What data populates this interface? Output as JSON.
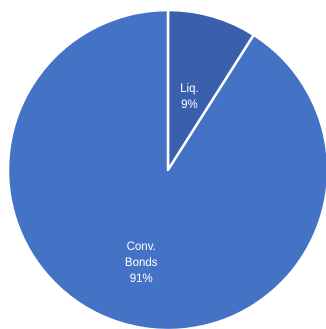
{
  "chart_data": {
    "type": "pie",
    "start_angle_deg": 0,
    "direction": "clockwise",
    "slices": [
      {
        "label_lines": [
          "Liq.",
          "9%"
        ],
        "value": 9,
        "color": "#3a5fad"
      },
      {
        "label_lines": [
          "Conv.",
          "Bonds",
          "91%"
        ],
        "value": 91,
        "color": "#4472c4"
      }
    ],
    "separator_color": "#ffffff",
    "legend": "none"
  }
}
